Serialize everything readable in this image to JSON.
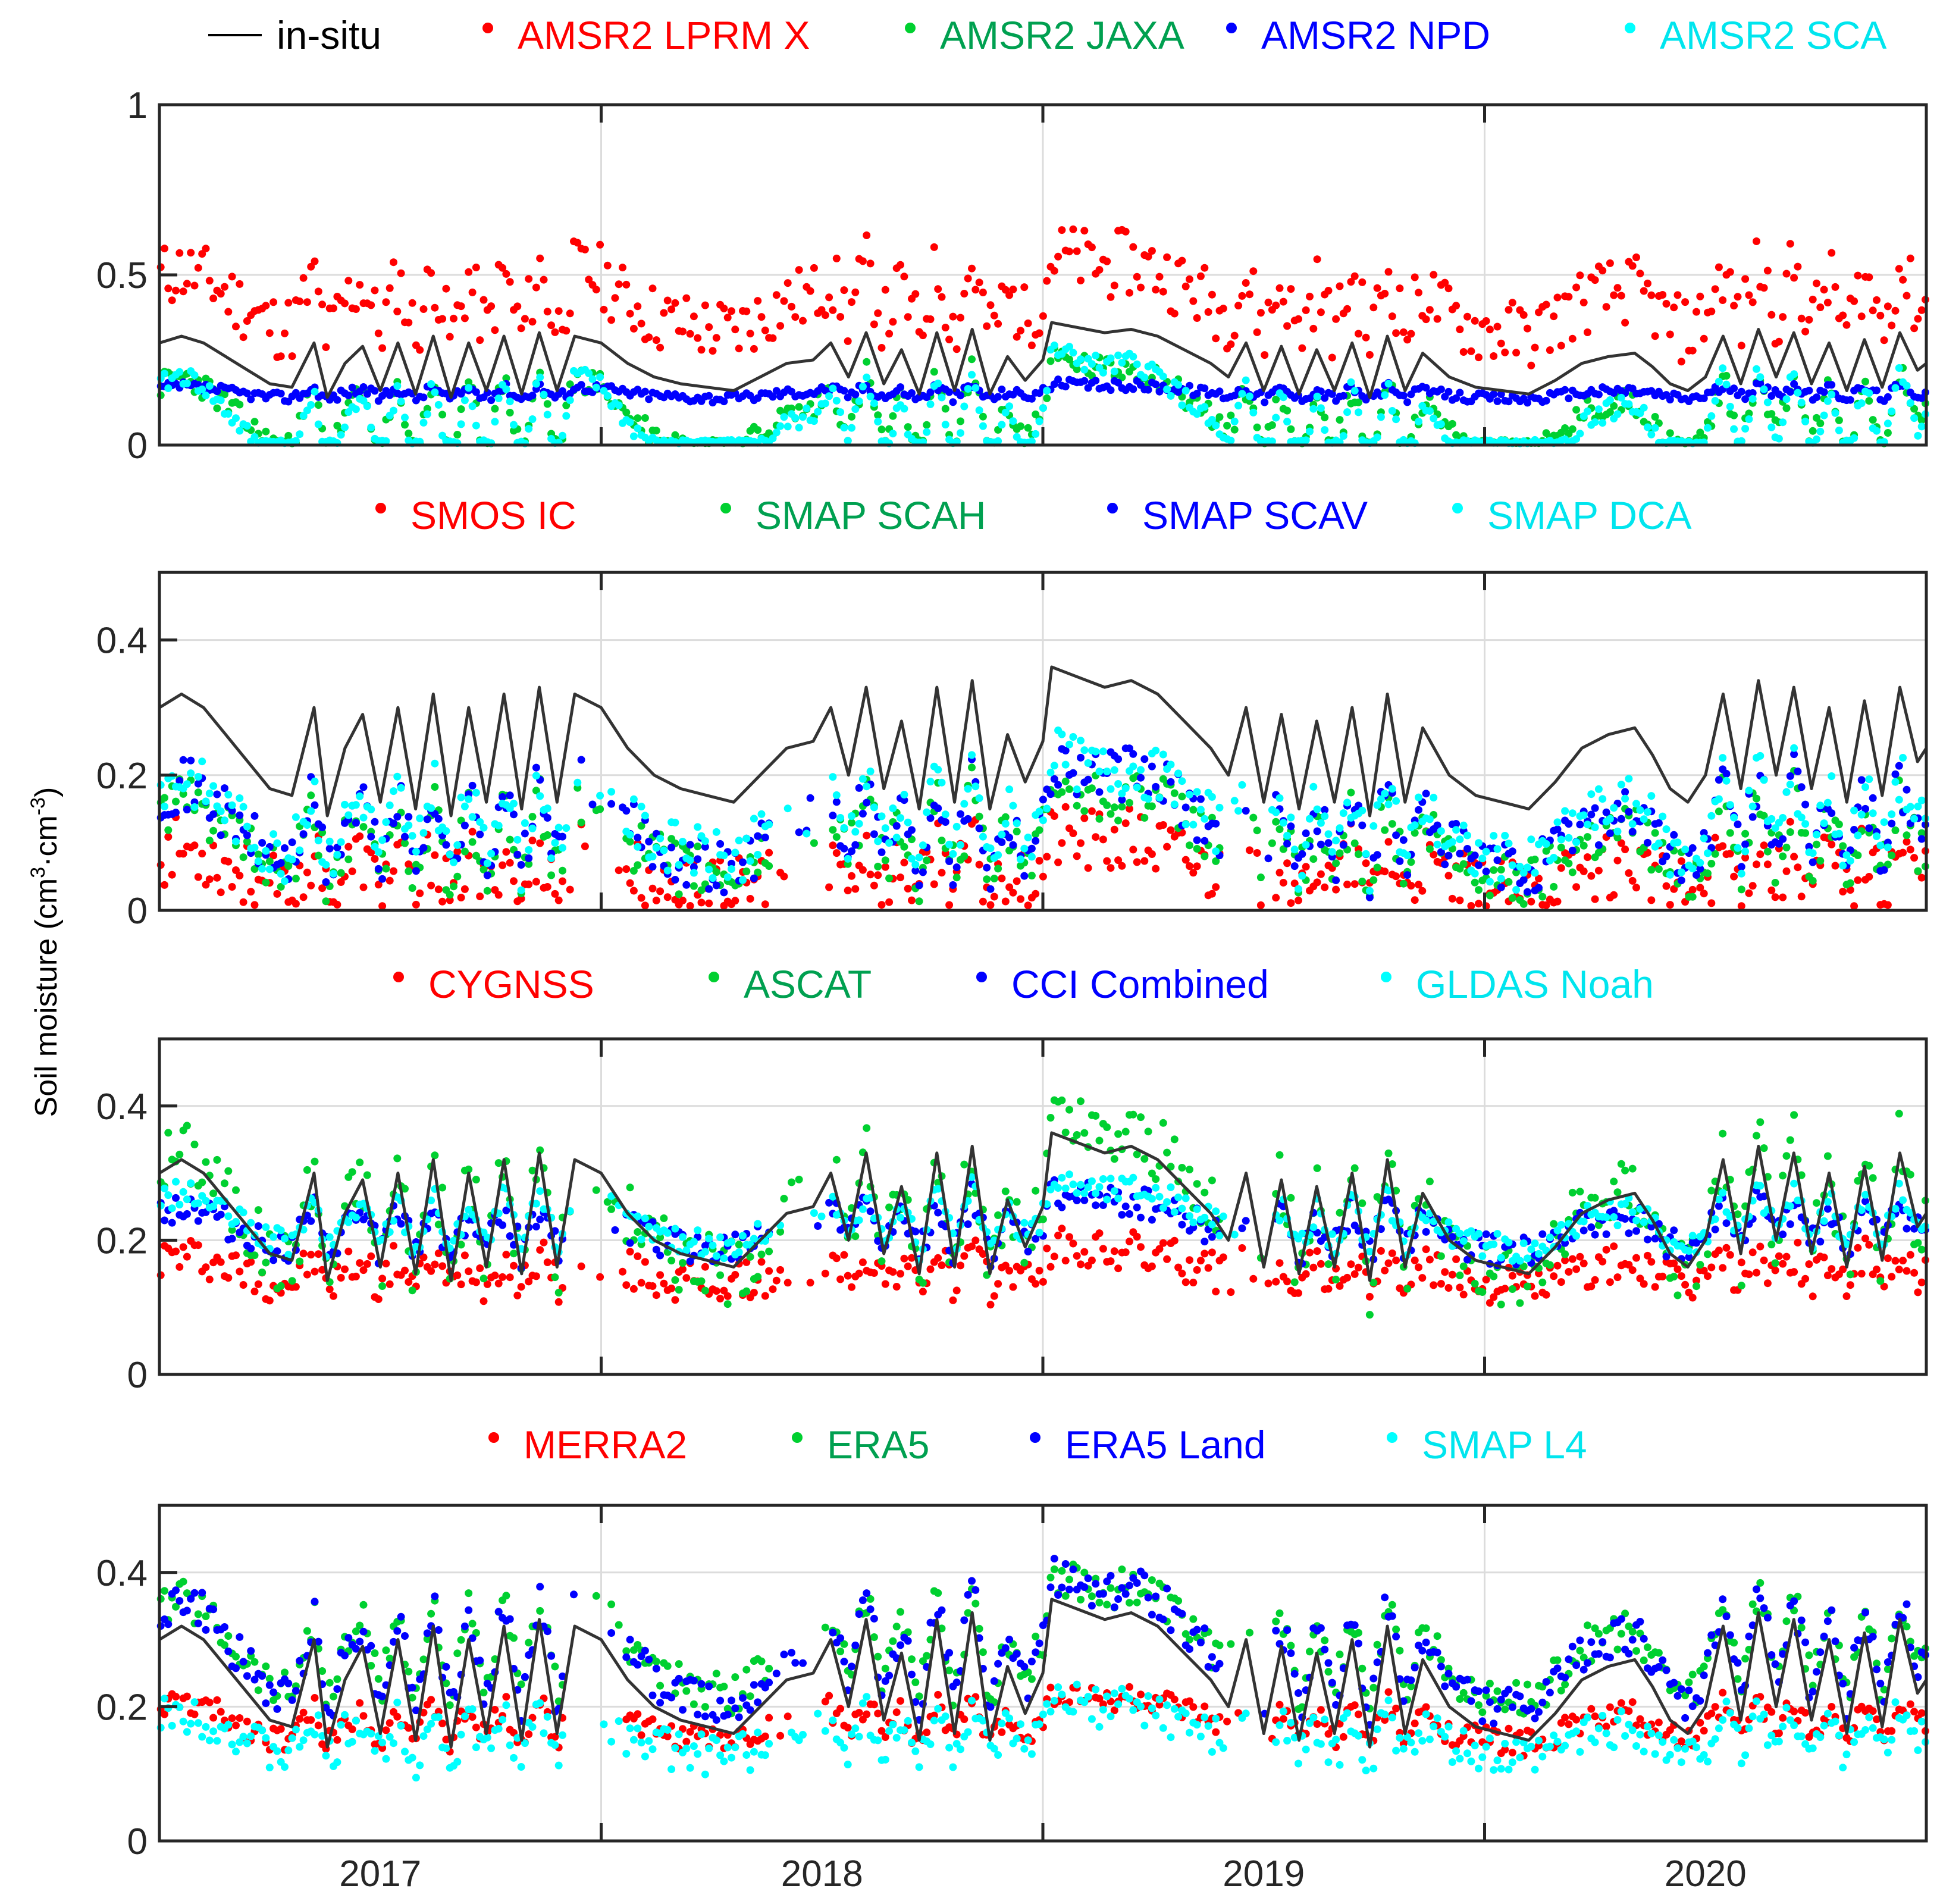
{
  "chart_data": {
    "type": "scatter",
    "ylabel": "Soil moisture (cm",
    "ylabel_sup1": "3",
    "ylabel_mid": "·cm",
    "ylabel_sup2": "-3",
    "ylabel_end": ")",
    "x_range": [
      2016.5,
      2020.5
    ],
    "x_ticks": [
      {
        "label": "2017",
        "value": 2017.0
      },
      {
        "label": "2018",
        "value": 2018.0
      },
      {
        "label": "2019",
        "value": 2019.0
      },
      {
        "label": "2020",
        "value": 2020.0
      }
    ],
    "grid": true,
    "colors": {
      "in-situ": "#000000",
      "red": "#ff0000",
      "green": "#00d030",
      "blue": "#0000ff",
      "cyan": "#00ffff"
    },
    "legend_colors": {
      "red": "#ff0000",
      "green": "#00a050",
      "blue": "#0000ff",
      "cyan": "#00e5ee"
    },
    "insitu_series": [
      [
        2016.5,
        0.3
      ],
      [
        2016.55,
        0.32
      ],
      [
        2016.6,
        0.3
      ],
      [
        2016.65,
        0.26
      ],
      [
        2016.7,
        0.22
      ],
      [
        2016.75,
        0.18
      ],
      [
        2016.8,
        0.17
      ],
      [
        2016.85,
        0.3
      ],
      [
        2016.88,
        0.14
      ],
      [
        2016.92,
        0.24
      ],
      [
        2016.96,
        0.29
      ],
      [
        2017.0,
        0.16
      ],
      [
        2017.04,
        0.3
      ],
      [
        2017.08,
        0.15
      ],
      [
        2017.12,
        0.32
      ],
      [
        2017.16,
        0.14
      ],
      [
        2017.2,
        0.3
      ],
      [
        2017.24,
        0.16
      ],
      [
        2017.28,
        0.32
      ],
      [
        2017.32,
        0.15
      ],
      [
        2017.36,
        0.33
      ],
      [
        2017.4,
        0.16
      ],
      [
        2017.44,
        0.32
      ],
      [
        2017.5,
        0.3
      ],
      [
        2017.56,
        0.24
      ],
      [
        2017.62,
        0.2
      ],
      [
        2017.68,
        0.18
      ],
      [
        2017.74,
        0.17
      ],
      [
        2017.8,
        0.16
      ],
      [
        2017.86,
        0.2
      ],
      [
        2017.92,
        0.24
      ],
      [
        2017.98,
        0.25
      ],
      [
        2018.02,
        0.3
      ],
      [
        2018.06,
        0.2
      ],
      [
        2018.1,
        0.33
      ],
      [
        2018.14,
        0.18
      ],
      [
        2018.18,
        0.28
      ],
      [
        2018.22,
        0.15
      ],
      [
        2018.26,
        0.33
      ],
      [
        2018.3,
        0.16
      ],
      [
        2018.34,
        0.34
      ],
      [
        2018.38,
        0.15
      ],
      [
        2018.42,
        0.26
      ],
      [
        2018.46,
        0.19
      ],
      [
        2018.5,
        0.25
      ],
      [
        2018.52,
        0.36
      ],
      [
        2018.56,
        0.35
      ],
      [
        2018.6,
        0.34
      ],
      [
        2018.64,
        0.33
      ],
      [
        2018.7,
        0.34
      ],
      [
        2018.76,
        0.32
      ],
      [
        2018.82,
        0.28
      ],
      [
        2018.88,
        0.24
      ],
      [
        2018.92,
        0.2
      ],
      [
        2018.96,
        0.3
      ],
      [
        2019.0,
        0.16
      ],
      [
        2019.04,
        0.29
      ],
      [
        2019.08,
        0.15
      ],
      [
        2019.12,
        0.28
      ],
      [
        2019.16,
        0.16
      ],
      [
        2019.2,
        0.3
      ],
      [
        2019.24,
        0.14
      ],
      [
        2019.28,
        0.32
      ],
      [
        2019.32,
        0.16
      ],
      [
        2019.36,
        0.27
      ],
      [
        2019.42,
        0.2
      ],
      [
        2019.48,
        0.17
      ],
      [
        2019.54,
        0.16
      ],
      [
        2019.6,
        0.15
      ],
      [
        2019.66,
        0.19
      ],
      [
        2019.72,
        0.24
      ],
      [
        2019.78,
        0.26
      ],
      [
        2019.84,
        0.27
      ],
      [
        2019.88,
        0.23
      ],
      [
        2019.92,
        0.18
      ],
      [
        2019.96,
        0.16
      ],
      [
        2020.0,
        0.2
      ],
      [
        2020.04,
        0.32
      ],
      [
        2020.08,
        0.18
      ],
      [
        2020.12,
        0.34
      ],
      [
        2020.16,
        0.2
      ],
      [
        2020.2,
        0.33
      ],
      [
        2020.24,
        0.18
      ],
      [
        2020.28,
        0.3
      ],
      [
        2020.32,
        0.16
      ],
      [
        2020.36,
        0.31
      ],
      [
        2020.4,
        0.17
      ],
      [
        2020.44,
        0.33
      ],
      [
        2020.48,
        0.22
      ],
      [
        2020.5,
        0.24
      ]
    ],
    "panels": [
      {
        "ylim": [
          0,
          1
        ],
        "yticks": [
          "0",
          "0.5",
          "1"
        ],
        "ytick_values": [
          0,
          0.5,
          1
        ],
        "legend": [
          "in-situ",
          "AMSR2 LPRM X",
          "AMSR2 JAXA",
          "AMSR2 NPD",
          "AMSR2 SCA"
        ],
        "series": [
          {
            "name": "AMSR2 LPRM X",
            "color": "red",
            "base": 0.4,
            "amp": 0.16,
            "noise": 0.1,
            "seed": 11
          },
          {
            "name": "AMSR2 JAXA",
            "color": "green",
            "base": 0.06,
            "amp": 0.2,
            "noise": 0.04,
            "seed": 23
          },
          {
            "name": "AMSR2 NPD",
            "color": "blue",
            "base": 0.15,
            "amp": 0.03,
            "noise": 0.015,
            "seed": 37
          },
          {
            "name": "AMSR2 SCA",
            "color": "cyan",
            "base": 0.03,
            "amp": 0.25,
            "noise": 0.03,
            "seed": 41
          }
        ]
      },
      {
        "ylim": [
          0,
          0.5
        ],
        "yticks": [
          "0",
          "0.2",
          "0.4"
        ],
        "ytick_values": [
          0,
          0.2,
          0.4
        ],
        "legend": [
          "SMOS IC",
          "SMAP SCAH",
          "SMAP SCAV",
          "SMAP DCA"
        ],
        "series": [
          {
            "name": "SMOS IC",
            "color": "red",
            "base": 0.05,
            "amp": 0.06,
            "noise": 0.05,
            "seed": 53
          },
          {
            "name": "SMAP SCAH",
            "color": "green",
            "base": 0.09,
            "amp": 0.1,
            "noise": 0.04,
            "seed": 61
          },
          {
            "name": "SMAP SCAV",
            "color": "blue",
            "base": 0.11,
            "amp": 0.11,
            "noise": 0.04,
            "seed": 71
          },
          {
            "name": "SMAP DCA",
            "color": "cyan",
            "base": 0.12,
            "amp": 0.11,
            "noise": 0.04,
            "seed": 83
          }
        ]
      },
      {
        "ylim": [
          0,
          0.5
        ],
        "yticks": [
          "0",
          "0.2",
          "0.4"
        ],
        "ytick_values": [
          0,
          0.2,
          0.4
        ],
        "legend": [
          "CYGNSS",
          "ASCAT",
          "CCI Combined",
          "GLDAS Noah"
        ],
        "series": [
          {
            "name": "CYGNSS",
            "color": "red",
            "base": 0.15,
            "amp": 0.04,
            "noise": 0.03,
            "seed": 97
          },
          {
            "name": "ASCAT",
            "color": "green",
            "base": 0.22,
            "amp": 0.16,
            "noise": 0.05,
            "seed": 101
          },
          {
            "name": "CCI Combined",
            "color": "blue",
            "base": 0.21,
            "amp": 0.06,
            "noise": 0.025,
            "seed": 113
          },
          {
            "name": "GLDAS Noah",
            "color": "cyan",
            "base": 0.22,
            "amp": 0.07,
            "noise": 0.02,
            "seed": 127
          }
        ]
      },
      {
        "ylim": [
          0,
          0.5
        ],
        "yticks": [
          "0",
          "0.2",
          "0.4"
        ],
        "ytick_values": [
          0,
          0.2,
          0.4
        ],
        "legend": [
          "MERRA2",
          "ERA5",
          "ERA5 Land",
          "SMAP L4"
        ],
        "series": [
          {
            "name": "MERRA2",
            "color": "red",
            "base": 0.17,
            "amp": 0.05,
            "noise": 0.02,
            "seed": 131
          },
          {
            "name": "ERA5",
            "color": "green",
            "base": 0.27,
            "amp": 0.13,
            "noise": 0.03,
            "seed": 139
          },
          {
            "name": "ERA5 Land",
            "color": "blue",
            "base": 0.26,
            "amp": 0.14,
            "noise": 0.03,
            "seed": 149
          },
          {
            "name": "SMAP L4",
            "color": "cyan",
            "base": 0.15,
            "amp": 0.06,
            "noise": 0.03,
            "seed": 151
          }
        ]
      }
    ]
  }
}
